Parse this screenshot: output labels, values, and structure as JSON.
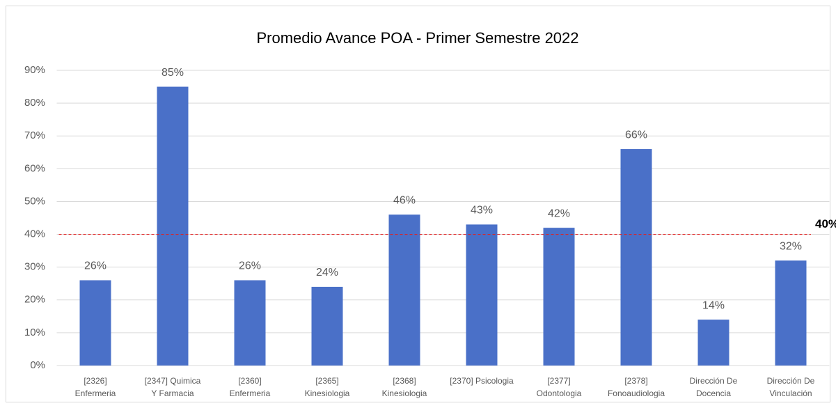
{
  "chart_data": {
    "type": "bar",
    "title": "Promedio Avance POA - Primer Semestre 2022",
    "categories": [
      [
        "[2326]",
        "Enfermeria"
      ],
      [
        "[2347] Quimica",
        "Y Farmacia"
      ],
      [
        "[2360]",
        "Enfermeria"
      ],
      [
        "[2365]",
        "Kinesiologia"
      ],
      [
        "[2368]",
        "Kinesiologia"
      ],
      [
        "[2370] Psicologia"
      ],
      [
        "[2377]",
        "Odontologia"
      ],
      [
        "[2378]",
        "Fonoaudiologia"
      ],
      [
        "Dirección De",
        "Docencia"
      ],
      [
        "Dirección De",
        "Vinculación"
      ]
    ],
    "values": [
      26,
      85,
      26,
      24,
      46,
      43,
      42,
      66,
      14,
      32
    ],
    "value_labels": [
      "26%",
      "85%",
      "26%",
      "24%",
      "46%",
      "43%",
      "42%",
      "66%",
      "14%",
      "32%"
    ],
    "color": "#4a70c8",
    "ylim": [
      0,
      90
    ],
    "yticks": [
      {
        "value": 0,
        "label": "0%"
      },
      {
        "value": 10,
        "label": "10%"
      },
      {
        "value": 20,
        "label": "20%"
      },
      {
        "value": 30,
        "label": "30%"
      },
      {
        "value": 40,
        "label": "40%"
      },
      {
        "value": 50,
        "label": "50%"
      },
      {
        "value": 60,
        "label": "60%"
      },
      {
        "value": 70,
        "label": "70%"
      },
      {
        "value": 80,
        "label": "80%"
      },
      {
        "value": 90,
        "label": "90%"
      }
    ],
    "grid": true,
    "reference_line": {
      "value": 40,
      "label": "40%",
      "color": "#e02020"
    }
  }
}
